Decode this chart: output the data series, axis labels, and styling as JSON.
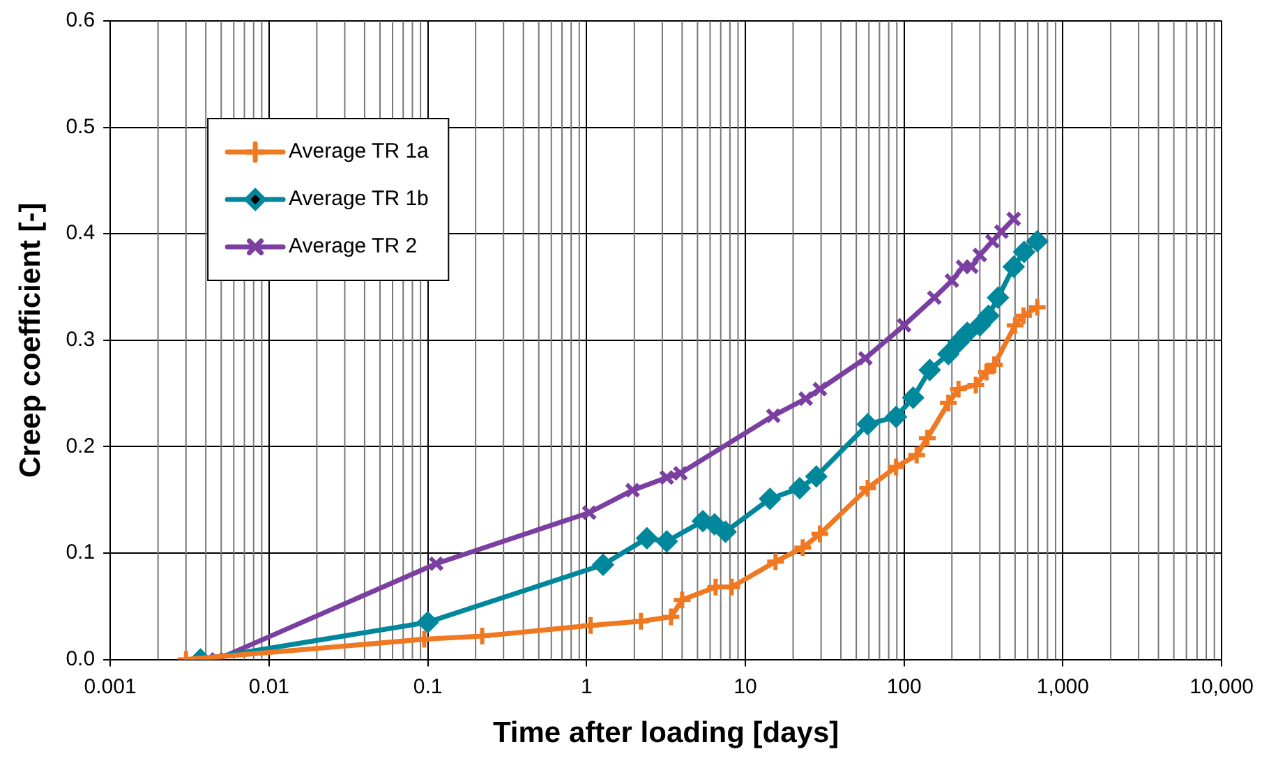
{
  "chart_data": {
    "type": "line",
    "xlabel": "Time after loading [days]",
    "ylabel": "Creep coefficient [-]",
    "log": "x",
    "xlim": [
      0.001,
      10000
    ],
    "xticks": [
      0.001,
      0.01,
      0.1,
      1,
      10,
      100,
      {
        "value": 1000,
        "label": "1,000"
      },
      {
        "value": 10000,
        "label": "10,000"
      }
    ],
    "ylim": [
      0,
      0.6
    ],
    "yticks": [
      {
        "value": 0,
        "label": "0.0"
      },
      0.1,
      0.2,
      0.3,
      0.4,
      0.5,
      0.6
    ],
    "grid": true,
    "legend": "top left",
    "line_style": "solid",
    "series": [
      {
        "name": "Average TR 1a",
        "color": "#f07820",
        "marker": "cross",
        "x": [
          0.003,
          0.095,
          0.22,
          1.06,
          2.2,
          3.4,
          4.0,
          6.5,
          8.2,
          15.5,
          23,
          29.5,
          59,
          89,
          120,
          140,
          190,
          220,
          283,
          330,
          370,
          500,
          565,
          690
        ],
        "values": [
          0,
          0.019,
          0.022,
          0.032,
          0.036,
          0.04,
          0.056,
          0.068,
          0.068,
          0.092,
          0.105,
          0.118,
          0.161,
          0.181,
          0.192,
          0.208,
          0.241,
          0.254,
          0.258,
          0.27,
          0.277,
          0.314,
          0.323,
          0.331
        ]
      },
      {
        "name": "Average TR 1b",
        "color": "#00879c",
        "marker": "diamond",
        "x": [
          0.0037,
          0.1,
          1.27,
          2.4,
          3.2,
          5.4,
          6.4,
          7.5,
          14.3,
          22,
          28,
          59,
          89,
          114,
          145,
          190,
          220,
          250,
          300,
          340,
          390,
          490,
          570,
          690
        ],
        "values": [
          0,
          0.035,
          0.089,
          0.114,
          0.111,
          0.13,
          0.127,
          0.12,
          0.151,
          0.161,
          0.172,
          0.221,
          0.228,
          0.246,
          0.272,
          0.287,
          0.298,
          0.307,
          0.314,
          0.323,
          0.34,
          0.369,
          0.383,
          0.393
        ]
      },
      {
        "name": "Average TR 2",
        "color": "#7a3fa0",
        "marker": "cross",
        "x": [
          0.0047,
          0.113,
          1.04,
          1.95,
          3.2,
          3.9,
          15,
          24,
          29.5,
          57,
          100,
          155,
          200,
          235,
          265,
          300,
          360,
          410,
          490
        ],
        "values": [
          0,
          0.09,
          0.138,
          0.159,
          0.171,
          0.175,
          0.229,
          0.245,
          0.254,
          0.283,
          0.314,
          0.34,
          0.356,
          0.369,
          0.369,
          0.38,
          0.393,
          0.402,
          0.414
        ]
      }
    ]
  }
}
